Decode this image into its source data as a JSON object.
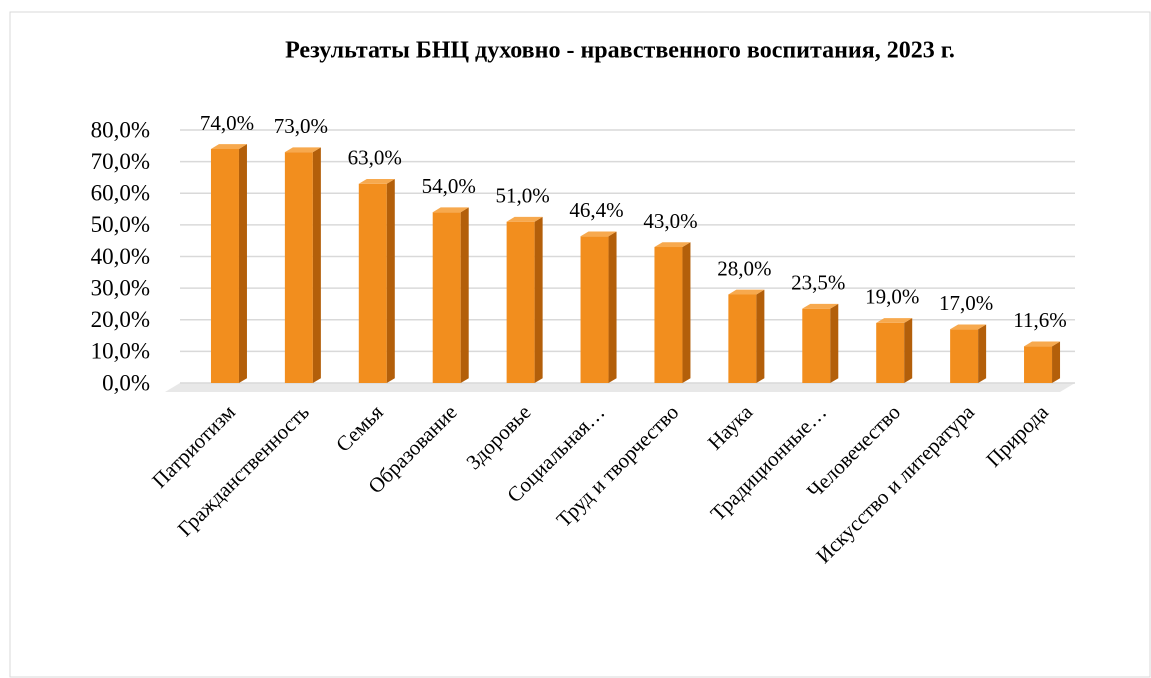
{
  "chart_data": {
    "type": "bar",
    "title": "Результаты БНЦ духовно - нравственного воспитания, 2023 г.",
    "categories": [
      "Патриотизм",
      "Гражданственность",
      "Семья",
      "Образование",
      "Здоровье",
      "Социальная…",
      "Труд и творчество",
      "Наука",
      "Традиционные…",
      "Человечество",
      "Искусство и литература",
      "Природа"
    ],
    "values": [
      74,
      73,
      63,
      54,
      51,
      46.4,
      43,
      28,
      23.5,
      19,
      17,
      11.6
    ],
    "value_labels": [
      "74,0%",
      "73,0%",
      "63,0%",
      "54,0%",
      "51,0%",
      "46,4%",
      "43,0%",
      "28,0%",
      "23,5%",
      "19,0%",
      "17,0%",
      "11,6%"
    ],
    "color": "#f28e1e",
    "ylim": [
      0,
      80
    ],
    "yticks": [
      {
        "value": 0,
        "label": "0,0%"
      },
      {
        "value": 10,
        "label": "10,0%"
      },
      {
        "value": 20,
        "label": "20,0%"
      },
      {
        "value": 30,
        "label": "30,0%"
      },
      {
        "value": 40,
        "label": "40,0%"
      },
      {
        "value": 50,
        "label": "50,0%"
      },
      {
        "value": 60,
        "label": "60,0%"
      },
      {
        "value": 70,
        "label": "70,0%"
      },
      {
        "value": 80,
        "label": "80,0%"
      }
    ],
    "grid": true
  }
}
